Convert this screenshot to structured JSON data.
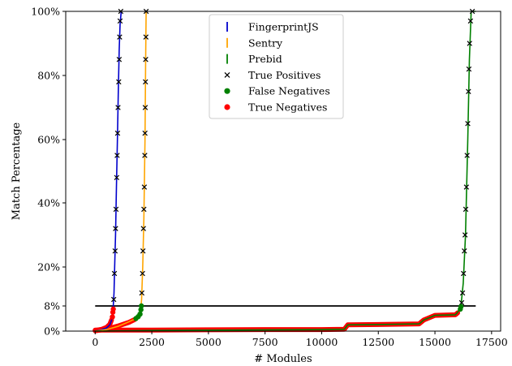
{
  "chart_data": {
    "type": "scatter",
    "xlabel": "# Modules",
    "ylabel": "Match Percentage",
    "xlim": [
      -1300,
      17900
    ],
    "ylim": [
      0,
      100
    ],
    "xticks": [
      0,
      2500,
      5000,
      7500,
      10000,
      12500,
      15000,
      17500
    ],
    "xtick_labels": [
      "0",
      "2500",
      "5000",
      "7500",
      "10000",
      "12500",
      "15000",
      "17500"
    ],
    "yticks": [
      0,
      8,
      20,
      40,
      60,
      80,
      100
    ],
    "ytick_labels": [
      "0%",
      "8%",
      "20%",
      "40%",
      "60%",
      "80%",
      "100%"
    ],
    "grid": false,
    "legend_position": "top-center",
    "threshold": {
      "y": 8,
      "x_range": [
        0,
        16800
      ],
      "color": "#000000"
    },
    "series": [
      {
        "name": "FingerprintJS",
        "kind": "line",
        "color": "#0000cc",
        "points": [
          [
            0,
            0
          ],
          [
            300,
            0.5
          ],
          [
            500,
            1
          ],
          [
            650,
            2
          ],
          [
            750,
            4
          ],
          [
            800,
            8
          ],
          [
            830,
            12
          ],
          [
            860,
            20
          ],
          [
            900,
            30
          ],
          [
            940,
            45
          ],
          [
            980,
            60
          ],
          [
            1020,
            75
          ],
          [
            1060,
            88
          ],
          [
            1100,
            96
          ],
          [
            1150,
            100
          ]
        ]
      },
      {
        "name": "Sentry",
        "kind": "line",
        "color": "#ffa500",
        "points": [
          [
            0,
            0
          ],
          [
            500,
            0.5
          ],
          [
            1000,
            1.5
          ],
          [
            1500,
            3
          ],
          [
            1800,
            4
          ],
          [
            1950,
            5
          ],
          [
            2000,
            6
          ],
          [
            2050,
            10
          ],
          [
            2100,
            20
          ],
          [
            2150,
            35
          ],
          [
            2200,
            60
          ],
          [
            2230,
            85
          ],
          [
            2250,
            100
          ]
        ]
      },
      {
        "name": "Prebid",
        "kind": "line",
        "color": "#008000",
        "points": [
          [
            0,
            0
          ],
          [
            2500,
            0.2
          ],
          [
            5000,
            0.3
          ],
          [
            7500,
            0.4
          ],
          [
            10000,
            0.5
          ],
          [
            11000,
            0.6
          ],
          [
            11150,
            2
          ],
          [
            12500,
            2.1
          ],
          [
            14300,
            2.3
          ],
          [
            14500,
            3.5
          ],
          [
            15000,
            5
          ],
          [
            15900,
            5.2
          ],
          [
            16000,
            6
          ],
          [
            16150,
            8
          ],
          [
            16250,
            15
          ],
          [
            16350,
            30
          ],
          [
            16450,
            60
          ],
          [
            16520,
            85
          ],
          [
            16600,
            100
          ],
          [
            16800,
            100
          ]
        ]
      },
      {
        "name": "True Positives",
        "kind": "scatter",
        "marker": "x",
        "color": "#000000",
        "points": [
          [
            820,
            10
          ],
          [
            850,
            18
          ],
          [
            880,
            25
          ],
          [
            900,
            32
          ],
          [
            920,
            38
          ],
          [
            950,
            48
          ],
          [
            970,
            55
          ],
          [
            990,
            62
          ],
          [
            1010,
            70
          ],
          [
            1040,
            78
          ],
          [
            1060,
            85
          ],
          [
            1080,
            92
          ],
          [
            1100,
            97
          ],
          [
            1130,
            100
          ],
          [
            2060,
            12
          ],
          [
            2090,
            18
          ],
          [
            2110,
            25
          ],
          [
            2130,
            32
          ],
          [
            2150,
            38
          ],
          [
            2170,
            45
          ],
          [
            2190,
            55
          ],
          [
            2200,
            62
          ],
          [
            2210,
            70
          ],
          [
            2220,
            78
          ],
          [
            2230,
            85
          ],
          [
            2240,
            92
          ],
          [
            2250,
            100
          ],
          [
            16180,
            9
          ],
          [
            16220,
            12
          ],
          [
            16260,
            18
          ],
          [
            16300,
            25
          ],
          [
            16330,
            30
          ],
          [
            16360,
            38
          ],
          [
            16390,
            45
          ],
          [
            16420,
            55
          ],
          [
            16450,
            65
          ],
          [
            16480,
            75
          ],
          [
            16500,
            82
          ],
          [
            16530,
            90
          ],
          [
            16570,
            97
          ],
          [
            16650,
            100
          ]
        ]
      },
      {
        "name": "False Negatives",
        "kind": "scatter",
        "marker": "o",
        "color": "#008000",
        "points": [
          [
            1800,
            4
          ],
          [
            1900,
            4.6
          ],
          [
            1980,
            5.4
          ],
          [
            2020,
            6.8
          ],
          [
            2040,
            8
          ],
          [
            16120,
            7
          ],
          [
            16150,
            7.8
          ]
        ]
      },
      {
        "name": "True Negatives",
        "kind": "scatter",
        "marker": "o",
        "color": "#ff0000",
        "points": [
          [
            780,
            6
          ],
          [
            800,
            7
          ],
          [
            760,
            4.5
          ]
        ]
      }
    ],
    "true_negative_curves": [
      [
        [
          0,
          0.3
        ],
        [
          2500,
          0.3
        ],
        [
          5000,
          0.4
        ],
        [
          7500,
          0.5
        ],
        [
          10000,
          0.5
        ],
        [
          11000,
          0.6
        ],
        [
          11150,
          2
        ],
        [
          12500,
          2.1
        ],
        [
          14300,
          2.3
        ],
        [
          14500,
          3.5
        ],
        [
          15000,
          5
        ],
        [
          15900,
          5.2
        ],
        [
          16000,
          5.8
        ]
      ],
      [
        [
          0,
          0.2
        ],
        [
          300,
          0.6
        ],
        [
          500,
          1.2
        ],
        [
          650,
          2.2
        ],
        [
          720,
          3.5
        ]
      ],
      [
        [
          0,
          0.1
        ],
        [
          500,
          0.6
        ],
        [
          1000,
          1.6
        ],
        [
          1500,
          2.8
        ],
        [
          1750,
          3.7
        ]
      ]
    ]
  }
}
